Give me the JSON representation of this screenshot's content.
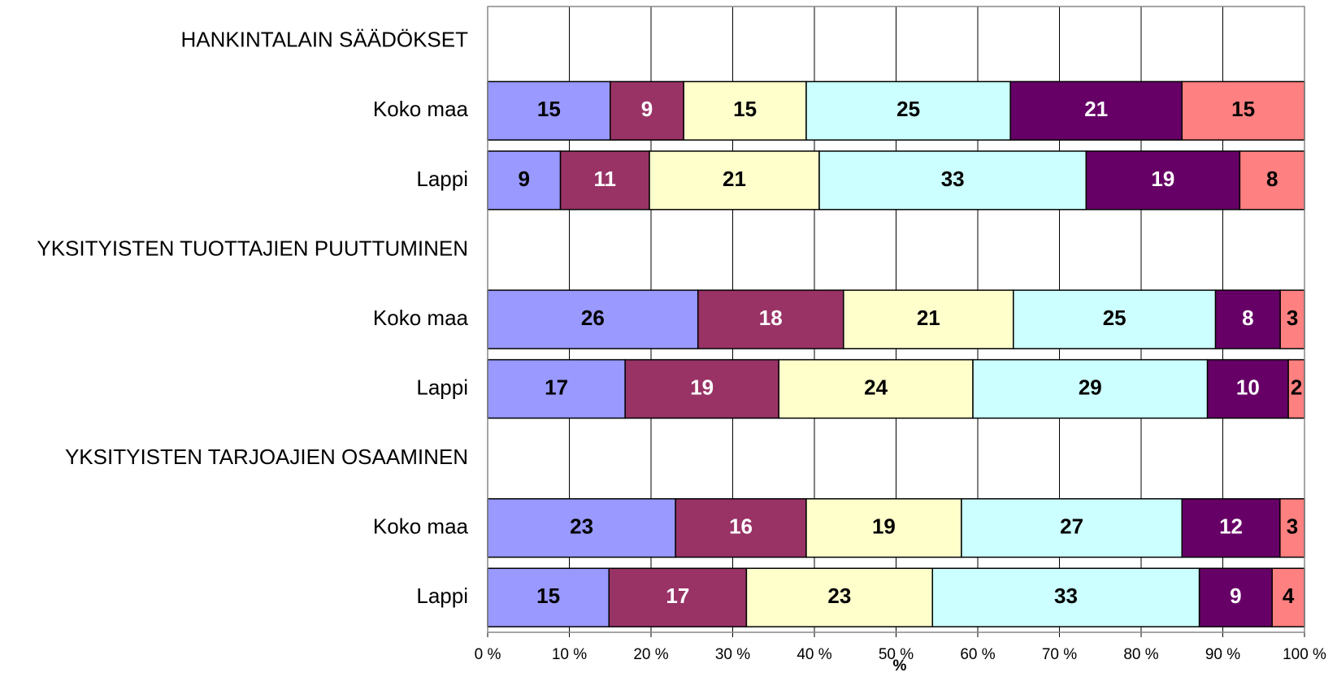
{
  "chart_data": {
    "type": "bar",
    "orientation": "horizontal",
    "stack": "percent",
    "categories": [
      "HANKINTALAIN SÄÄDÖKSET",
      "Koko maa",
      "Lappi",
      "YKSITYISTEN TUOTTAJIEN PUUTTUMINEN",
      "Koko maa",
      "Lappi",
      "YKSITYISTEN TARJOAJIEN OSAAMINEN",
      "Koko maa",
      "Lappi"
    ],
    "series": [
      {
        "color": "#9999ff",
        "label_color": "#000000",
        "values": [
          null,
          15,
          9,
          null,
          26,
          17,
          null,
          23,
          15
        ]
      },
      {
        "color": "#993366",
        "label_color": "#ffffff",
        "values": [
          null,
          9,
          11,
          null,
          18,
          19,
          null,
          16,
          17
        ]
      },
      {
        "color": "#ffffcc",
        "label_color": "#000000",
        "values": [
          null,
          15,
          21,
          null,
          21,
          24,
          null,
          19,
          23
        ]
      },
      {
        "color": "#ccffff",
        "label_color": "#000000",
        "values": [
          null,
          25,
          33,
          null,
          25,
          29,
          null,
          27,
          33
        ]
      },
      {
        "color": "#660066",
        "label_color": "#ffffff",
        "values": [
          null,
          21,
          19,
          null,
          8,
          10,
          null,
          12,
          9
        ]
      },
      {
        "color": "#ff8080",
        "label_color": "#000000",
        "values": [
          null,
          15,
          8,
          null,
          3,
          2,
          null,
          3,
          4
        ]
      }
    ],
    "xlabel": "%",
    "xlim": [
      0,
      100
    ],
    "xticks": [
      {
        "value": 0,
        "label": "0 %"
      },
      {
        "value": 10,
        "label": "10 %"
      },
      {
        "value": 20,
        "label": "20 %"
      },
      {
        "value": 30,
        "label": "30 %"
      },
      {
        "value": 40,
        "label": "40 %"
      },
      {
        "value": 50,
        "label": "50 %"
      },
      {
        "value": 60,
        "label": "60 %"
      },
      {
        "value": 70,
        "label": "70 %"
      },
      {
        "value": 80,
        "label": "80 %"
      },
      {
        "value": 90,
        "label": "90 %"
      },
      {
        "value": 100,
        "label": "100 %"
      }
    ],
    "grid": true
  }
}
